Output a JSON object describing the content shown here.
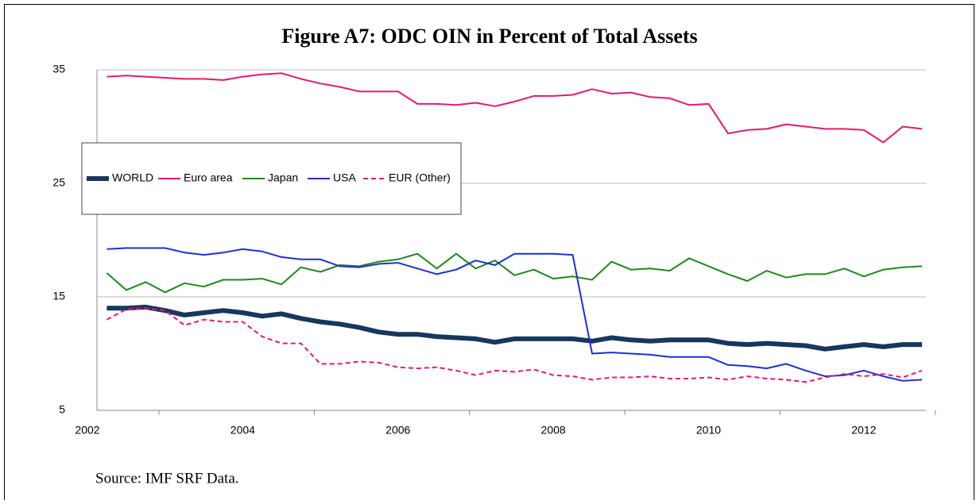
{
  "chart_data": {
    "type": "line",
    "title": "Figure A7: ODC OIN in Percent of Total Assets",
    "source": "Source: IMF SRF Data.",
    "x": [
      2002.25,
      2002.5,
      2002.75,
      2003,
      2003.25,
      2003.5,
      2003.75,
      2004,
      2004.25,
      2004.5,
      2004.75,
      2005,
      2005.25,
      2005.5,
      2005.75,
      2006,
      2006.25,
      2006.5,
      2006.75,
      2007,
      2007.25,
      2007.5,
      2007.75,
      2008,
      2008.25,
      2008.5,
      2008.75,
      2009,
      2009.25,
      2009.5,
      2009.75,
      2010,
      2010.25,
      2010.5,
      2010.75,
      2011,
      2011.25,
      2011.5,
      2011.75,
      2012,
      2012.25,
      2012.5,
      2012.75
    ],
    "series": [
      {
        "name": "WORLD",
        "color": "#17375e",
        "width": 6,
        "style": "solid",
        "values": [
          14.0,
          14.0,
          14.1,
          13.8,
          13.4,
          13.6,
          13.8,
          13.6,
          13.3,
          13.5,
          13.1,
          12.8,
          12.6,
          12.3,
          11.9,
          11.7,
          11.7,
          11.5,
          11.4,
          11.3,
          11.0,
          11.3,
          11.3,
          11.3,
          11.3,
          11.1,
          11.4,
          11.2,
          11.1,
          11.2,
          11.2,
          11.2,
          10.9,
          10.8,
          10.9,
          10.8,
          10.7,
          10.4,
          10.6,
          10.8,
          10.6,
          10.8,
          10.8
        ]
      },
      {
        "name": "Euro area",
        "color": "#e8196b",
        "width": 2,
        "style": "solid",
        "values": [
          34.4,
          34.5,
          34.4,
          34.3,
          34.2,
          34.2,
          34.1,
          34.4,
          34.6,
          34.7,
          34.2,
          33.8,
          33.5,
          33.1,
          33.1,
          33.1,
          32.0,
          32.0,
          31.9,
          32.1,
          31.8,
          32.2,
          32.7,
          32.7,
          32.8,
          33.3,
          32.9,
          33.0,
          32.6,
          32.5,
          31.9,
          32.0,
          29.4,
          29.7,
          29.8,
          30.2,
          30.0,
          29.8,
          29.8,
          29.7,
          28.6,
          30.0,
          29.8
        ]
      },
      {
        "name": "Japan",
        "color": "#1e8a1e",
        "width": 2,
        "style": "solid",
        "values": [
          17.1,
          15.6,
          16.3,
          15.4,
          16.2,
          15.9,
          16.5,
          16.5,
          16.6,
          16.1,
          17.6,
          17.2,
          17.8,
          17.7,
          18.1,
          18.3,
          18.8,
          17.5,
          18.8,
          17.5,
          18.2,
          16.9,
          17.4,
          16.6,
          16.8,
          16.5,
          18.1,
          17.4,
          17.5,
          17.3,
          18.4,
          17.7,
          17.0,
          16.4,
          17.3,
          16.7,
          17.0,
          17.0,
          17.5,
          16.8,
          17.4,
          17.6,
          17.7
        ]
      },
      {
        "name": "USA",
        "color": "#1f2fd6",
        "width": 2,
        "style": "solid",
        "values": [
          19.2,
          19.3,
          19.3,
          19.3,
          18.9,
          18.7,
          18.9,
          19.2,
          19.0,
          18.5,
          18.3,
          18.3,
          17.7,
          17.6,
          17.9,
          18.0,
          17.5,
          17.0,
          17.4,
          18.2,
          17.8,
          18.8,
          18.8,
          18.8,
          18.7,
          10.0,
          10.1,
          10.0,
          9.9,
          9.7,
          9.7,
          9.7,
          9.0,
          8.9,
          8.7,
          9.1,
          8.5,
          8.0,
          8.1,
          8.5,
          8.0,
          7.6,
          7.7
        ]
      },
      {
        "name": "EUR (Other)",
        "color": "#e8196b",
        "width": 2,
        "style": "dashed",
        "values": [
          13.0,
          13.9,
          14.0,
          13.8,
          12.5,
          13.0,
          12.8,
          12.8,
          11.5,
          10.9,
          10.9,
          9.1,
          9.1,
          9.3,
          9.2,
          8.8,
          8.7,
          8.8,
          8.5,
          8.1,
          8.5,
          8.4,
          8.6,
          8.1,
          8.0,
          7.7,
          7.9,
          7.9,
          8.0,
          7.8,
          7.8,
          7.9,
          7.7,
          8.0,
          7.8,
          7.7,
          7.5,
          7.9,
          8.2,
          8.0,
          8.2,
          7.9,
          8.5
        ]
      }
    ],
    "xlim": [
      2002,
      2012.8
    ],
    "xticks": [
      2002,
      2004,
      2006,
      2008,
      2010,
      2012
    ],
    "ylim": [
      5,
      35
    ],
    "yticks": [
      5,
      15,
      25,
      35
    ],
    "grid": true,
    "legend": "upper left"
  }
}
